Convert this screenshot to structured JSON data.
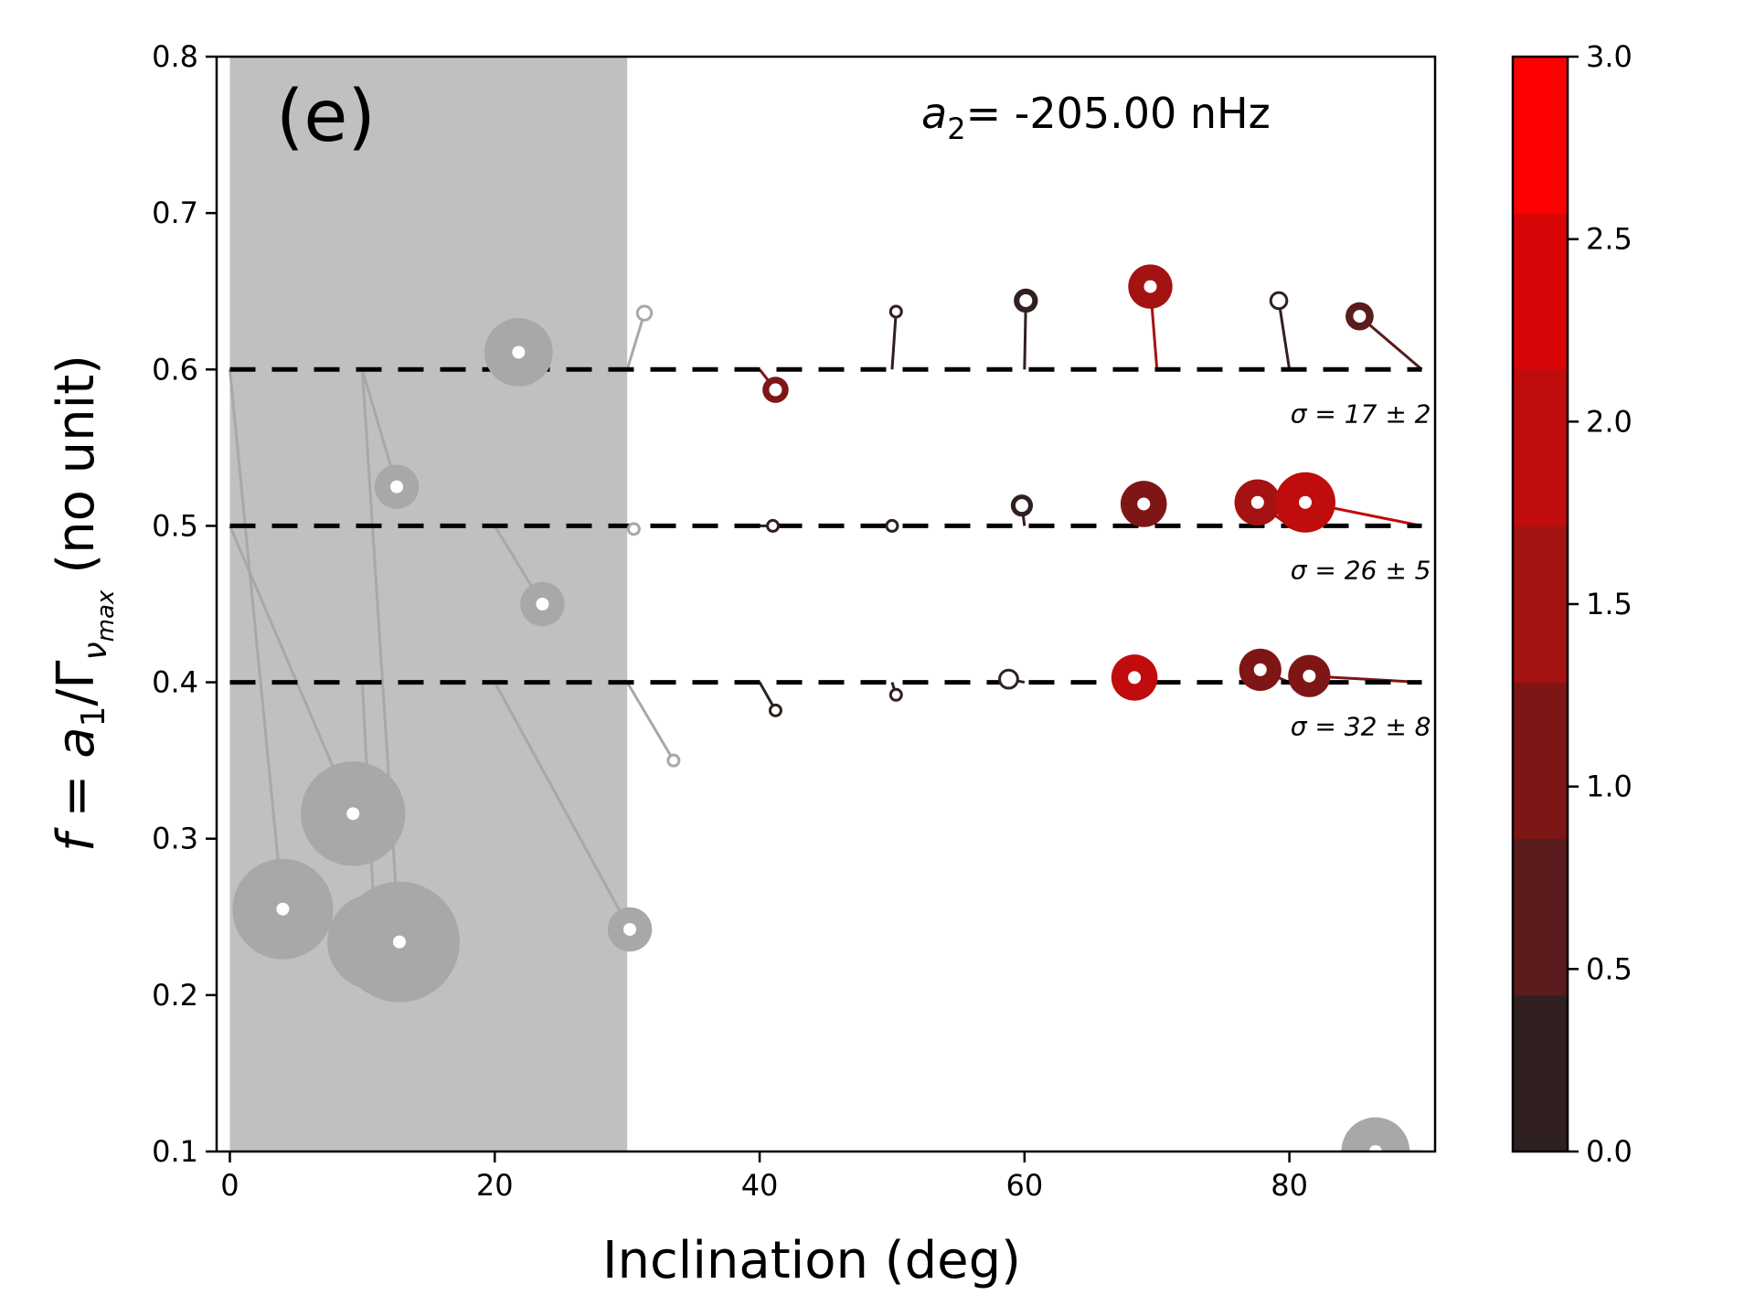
{
  "chart_data": {
    "type": "scatter",
    "panel_label": "(e)",
    "annotation": {
      "prefix": "a",
      "subscript": "2",
      "text": "= -205.00 nHz"
    },
    "xlabel": "Inclination (deg)",
    "ylabel": {
      "main": "f = a",
      "sub1": "1",
      "mid": "/Γ",
      "sub2": "ν",
      "sub3": "max",
      "tail": "(no unit)"
    },
    "xlim": [
      -1,
      91
    ],
    "ylim": [
      0.1,
      0.8
    ],
    "xticks": [
      0,
      20,
      40,
      60,
      80
    ],
    "yticks": [
      0.1,
      0.2,
      0.3,
      0.4,
      0.5,
      0.6,
      0.7,
      0.8
    ],
    "xtick_labels": [
      "0",
      "20",
      "40",
      "60",
      "80"
    ],
    "ytick_labels": [
      "0.1",
      "0.2",
      "0.3",
      "0.4",
      "0.5",
      "0.6",
      "0.7",
      "0.8"
    ],
    "shaded_region": {
      "x": [
        0,
        30
      ],
      "color": "#c0c0c0"
    },
    "reference_lines": [
      {
        "y": 0.6,
        "label": "σ = 17 ± 2"
      },
      {
        "y": 0.5,
        "label": "σ = 26 ± 5"
      },
      {
        "y": 0.4,
        "label": "σ = 32 ± 8"
      }
    ],
    "colorbar": {
      "min": 0.0,
      "max": 3.0,
      "ticks": [
        0.0,
        0.5,
        1.0,
        1.5,
        2.0,
        2.5,
        3.0
      ],
      "tick_labels": [
        "0.0",
        "0.5",
        "1.0",
        "1.5",
        "2.0",
        "2.5",
        "3.0"
      ],
      "colors": [
        "#302020",
        "#5a1c1c",
        "#7e1616",
        "#a51212",
        "#c00c0c",
        "#d80606",
        "#ff0000"
      ]
    },
    "points": [
      {
        "x": 4.0,
        "y": 0.255,
        "size": 2.5,
        "value": null,
        "true_x": 0.0,
        "true_y": 0.6
      },
      {
        "x": 9.3,
        "y": 0.316,
        "size": 2.6,
        "value": null,
        "true_x": 0.0,
        "true_y": 0.5
      },
      {
        "x": 11.0,
        "y": 0.234,
        "size": 2.4,
        "value": null,
        "true_x": 10.0,
        "true_y": 0.4
      },
      {
        "x": 12.8,
        "y": 0.234,
        "size": 3.0,
        "value": null,
        "true_x": 10.0,
        "true_y": 0.6
      },
      {
        "x": 12.6,
        "y": 0.525,
        "size": 1.1,
        "value": null,
        "true_x": 10.0,
        "true_y": 0.6
      },
      {
        "x": 21.8,
        "y": 0.611,
        "size": 1.7,
        "value": null,
        "true_x": 20.0,
        "true_y": 0.6
      },
      {
        "x": 23.6,
        "y": 0.45,
        "size": 1.1,
        "value": null,
        "true_x": 20.0,
        "true_y": 0.5
      },
      {
        "x": 30.2,
        "y": 0.242,
        "size": 1.1,
        "value": null,
        "true_x": 20.0,
        "true_y": 0.4
      },
      {
        "x": 31.3,
        "y": 0.636,
        "size": 0.35,
        "value": null,
        "true_x": 30.0,
        "true_y": 0.6
      },
      {
        "x": 30.5,
        "y": 0.498,
        "size": 0.05,
        "value": null,
        "true_x": 30.0,
        "true_y": 0.5
      },
      {
        "x": 33.5,
        "y": 0.35,
        "size": 0.05,
        "value": null,
        "true_x": 30.0,
        "true_y": 0.4
      },
      {
        "x": 41.2,
        "y": 0.587,
        "size": 0.65,
        "value": 1.0,
        "true_x": 40.0,
        "true_y": 0.6
      },
      {
        "x": 41.0,
        "y": 0.5,
        "size": 0.25,
        "value": 0.1,
        "true_x": 40.0,
        "true_y": 0.5
      },
      {
        "x": 41.2,
        "y": 0.382,
        "size": 0.05,
        "value": 0.2,
        "true_x": 40.0,
        "true_y": 0.4
      },
      {
        "x": 50.3,
        "y": 0.637,
        "size": 0.22,
        "value": 0.1,
        "true_x": 50.0,
        "true_y": 0.6
      },
      {
        "x": 50.0,
        "y": 0.5,
        "size": 0.17,
        "value": 0.1,
        "true_x": 50.0,
        "true_y": 0.5
      },
      {
        "x": 50.3,
        "y": 0.392,
        "size": 0.19,
        "value": 0.1,
        "true_x": 50.0,
        "true_y": 0.4
      },
      {
        "x": 60.1,
        "y": 0.644,
        "size": 0.6,
        "value": 0.2,
        "true_x": 60.0,
        "true_y": 0.6
      },
      {
        "x": 59.8,
        "y": 0.513,
        "size": 0.55,
        "value": 0.2,
        "true_x": 60.0,
        "true_y": 0.5
      },
      {
        "x": 58.8,
        "y": 0.402,
        "size": 0.45,
        "value": 0.2,
        "true_x": 60.0,
        "true_y": 0.4
      },
      {
        "x": 69.5,
        "y": 0.653,
        "size": 1.1,
        "value": 1.3,
        "true_x": 70.0,
        "true_y": 0.6
      },
      {
        "x": 69.0,
        "y": 0.514,
        "size": 1.15,
        "value": 1.2,
        "true_x": 70.0,
        "true_y": 0.5
      },
      {
        "x": 68.3,
        "y": 0.403,
        "size": 1.15,
        "value": 1.8,
        "true_x": 70.0,
        "true_y": 0.4
      },
      {
        "x": 79.2,
        "y": 0.644,
        "size": 0.4,
        "value": 0.3,
        "true_x": 80.0,
        "true_y": 0.6
      },
      {
        "x": 77.6,
        "y": 0.515,
        "size": 1.15,
        "value": 1.7,
        "true_x": 80.0,
        "true_y": 0.5
      },
      {
        "x": 77.8,
        "y": 0.408,
        "size": 1.05,
        "value": 1.1,
        "true_x": 80.0,
        "true_y": 0.4
      },
      {
        "x": 85.3,
        "y": 0.634,
        "size": 0.7,
        "value": 0.7,
        "true_x": 90.0,
        "true_y": 0.6
      },
      {
        "x": 81.2,
        "y": 0.515,
        "size": 1.5,
        "value": 2.1,
        "true_x": 90.0,
        "true_y": 0.5
      },
      {
        "x": 81.5,
        "y": 0.404,
        "size": 1.05,
        "value": 1.0,
        "true_x": 90.0,
        "true_y": 0.4
      },
      {
        "x": 86.5,
        "y": 0.1,
        "size": 1.7,
        "value": null,
        "true_x": 90.0,
        "true_y": 0.1
      }
    ],
    "gray_color": "#a8a8a8",
    "grid": false
  }
}
